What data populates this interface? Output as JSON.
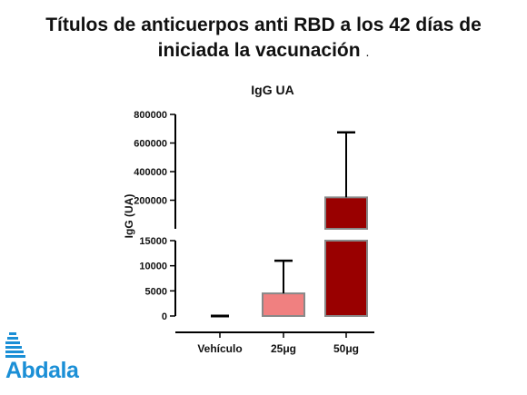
{
  "slide": {
    "title_line1": "Títulos de anticuerpos anti RBD a los 42 días de",
    "title_line2": "iniciada la vacunación",
    "title_suffix": "."
  },
  "logo": {
    "text": "Abdala",
    "color": "#1b8fd6"
  },
  "chart_data": {
    "type": "bar",
    "title": "IgG UA",
    "ylabel": "IgG (UA)",
    "categories": [
      "Vehículo",
      "25μg",
      "50μg"
    ],
    "values": [
      0,
      4500,
      220000
    ],
    "error_upper": [
      0,
      11000,
      675000
    ],
    "bar_colors": [
      "#ffffff",
      "#f08080",
      "#990000"
    ],
    "axis_break": true,
    "ylim_lower": [
      0,
      15000
    ],
    "ylim_upper": [
      15000,
      800000
    ],
    "ticks_lower": [
      "0",
      "5000",
      "10000",
      "15000"
    ],
    "ticks_upper": [
      "200000",
      "400000",
      "600000",
      "800000"
    ],
    "grid": false
  }
}
